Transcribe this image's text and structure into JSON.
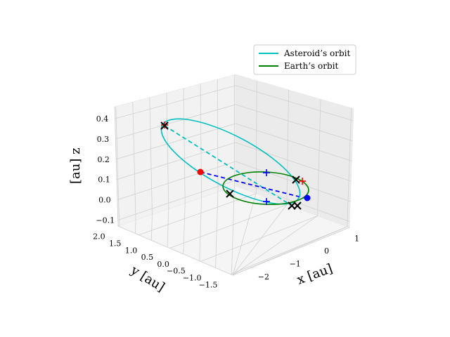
{
  "chart_data": {
    "type": "line",
    "projection": "3d",
    "legend": {
      "placement": "top-right",
      "entries": [
        {
          "label": "Asteroid’s orbit",
          "color": "#00bfbf"
        },
        {
          "label": "Earth’s orbit",
          "color": "#008000"
        }
      ]
    },
    "axes": {
      "x": {
        "label": "x [au]",
        "ticks": [
          "−2",
          "−1",
          "0",
          "1"
        ]
      },
      "y": {
        "label": "y [au]",
        "ticks": [
          "2.0",
          "1.5",
          "1.0",
          "0.5",
          "0.0",
          "−0.5",
          "−1.0",
          "−1.5"
        ]
      },
      "z": {
        "label": "[au] z",
        "ticks": [
          "0.4",
          "0.3",
          "0.2",
          "0.1",
          "0.0",
          "−0.1"
        ]
      }
    },
    "series": [
      {
        "name": "Asteroid’s orbit",
        "color": "#00bfbf",
        "style": "solid"
      },
      {
        "name": "Earth’s orbit",
        "color": "#008000",
        "style": "solid"
      }
    ],
    "colors": {
      "asteroid": "#00bfbf",
      "earth": "#008000",
      "node_line": "#0000ff",
      "red_marker": "#ff0000",
      "cross_marker": "#000000"
    }
  }
}
